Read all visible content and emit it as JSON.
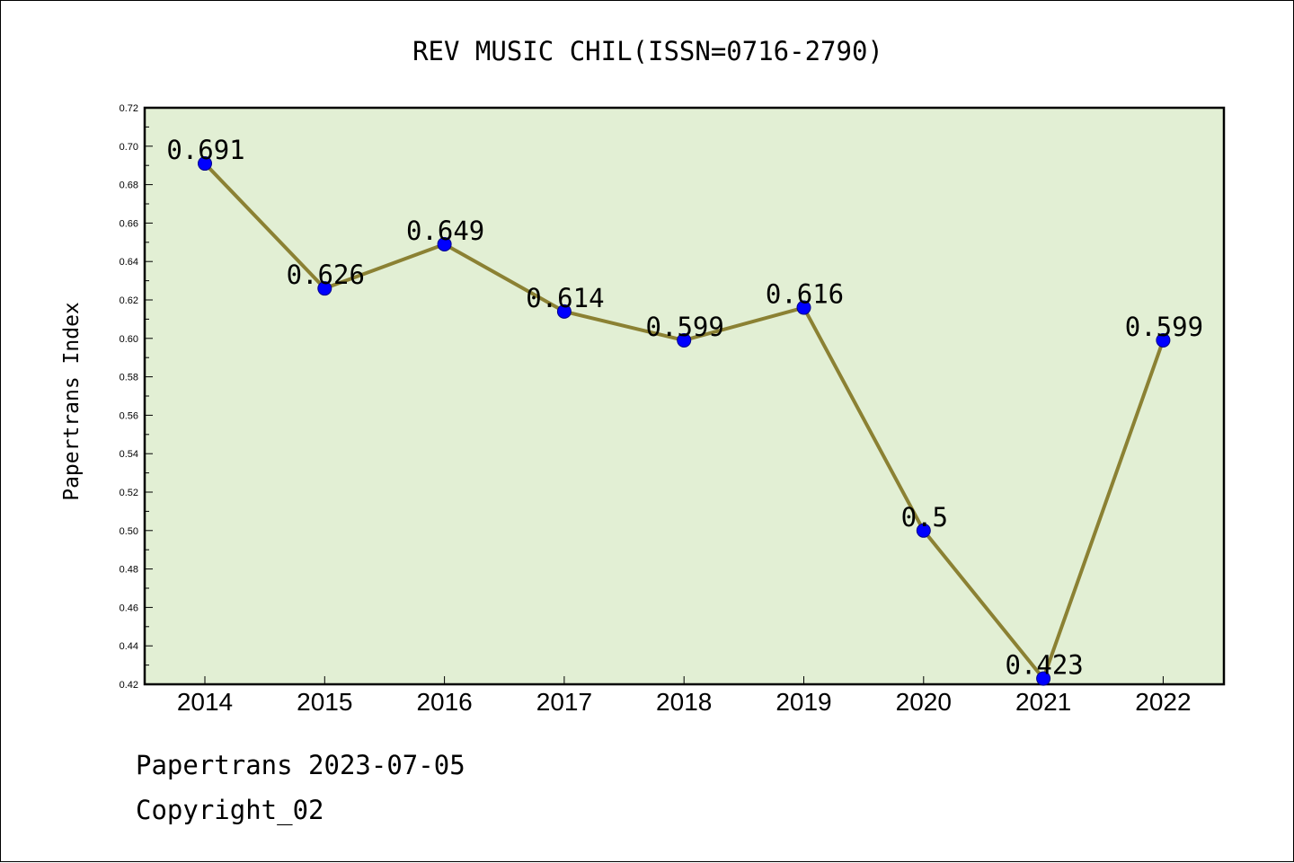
{
  "chart_data": {
    "type": "line",
    "title": "REV MUSIC CHIL(ISSN=0716-2790)",
    "xlabel": "",
    "ylabel": "Papertrans Index",
    "categories": [
      "2014",
      "2015",
      "2016",
      "2017",
      "2018",
      "2019",
      "2020",
      "2021",
      "2022"
    ],
    "values": [
      0.691,
      0.626,
      0.649,
      0.614,
      0.599,
      0.616,
      0.5,
      0.423,
      0.599
    ],
    "data_labels": [
      "0.691",
      "0.626",
      "0.649",
      "0.614",
      "0.599",
      "0.616",
      "0.5",
      "0.423",
      "0.599"
    ],
    "ylim": [
      0.42,
      0.72
    ],
    "yticks": [
      "0.42",
      "0.44",
      "0.46",
      "0.48",
      "0.50",
      "0.52",
      "0.54",
      "0.56",
      "0.58",
      "0.60",
      "0.62",
      "0.64",
      "0.66",
      "0.68",
      "0.70",
      "0.72"
    ],
    "grid": false,
    "legend": "none",
    "colors": {
      "plot_background": "#e2efd4",
      "line": "#8b8133",
      "marker": "#0000ff",
      "axes": "#000000"
    }
  },
  "footer": {
    "line1": "Papertrans 2023-07-05",
    "line2": "Copyright_02"
  }
}
